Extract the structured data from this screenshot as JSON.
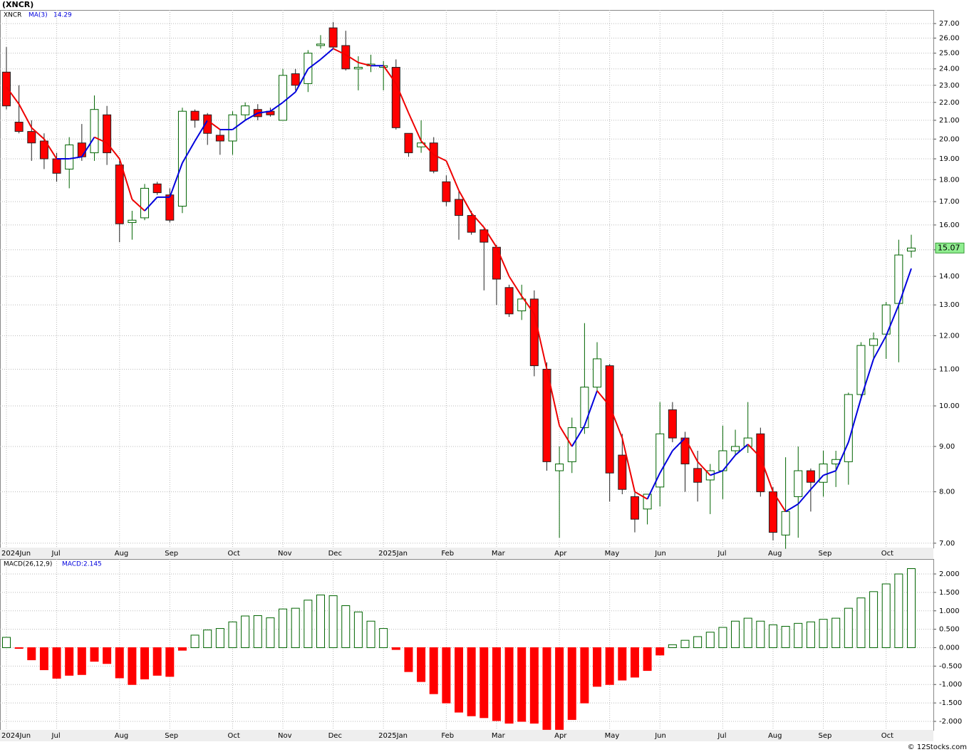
{
  "chart_data": [
    {
      "type": "candlestick",
      "title": "(XNCR)",
      "symbol": "XNCR",
      "categories": [
        "2024Jun",
        null,
        null,
        null,
        "Jul",
        null,
        null,
        null,
        null,
        "Aug",
        null,
        null,
        null,
        "Sep",
        null,
        null,
        null,
        null,
        "Oct",
        null,
        null,
        null,
        "Nov",
        null,
        null,
        null,
        "Dec",
        null,
        null,
        null,
        "2025Jan",
        null,
        null,
        null,
        null,
        "Feb",
        null,
        null,
        null,
        "Mar",
        null,
        null,
        null,
        null,
        "Apr",
        null,
        null,
        null,
        "May",
        null,
        null,
        null,
        "Jun",
        null,
        null,
        null,
        null,
        "Jul",
        null,
        null,
        null,
        "Aug",
        null,
        null,
        null,
        "Sep",
        null,
        null,
        null,
        null,
        "Oct",
        null,
        null
      ],
      "open": [
        23.8,
        20.9,
        20.4,
        19.9,
        19.0,
        18.5,
        19.8,
        19.3,
        21.3,
        18.7,
        16.1,
        16.3,
        17.8,
        17.3,
        16.8,
        21.5,
        21.3,
        20.2,
        19.9,
        21.3,
        21.6,
        21.5,
        21.0,
        23.7,
        23.1,
        25.5,
        26.7,
        25.5,
        24.0,
        24.2,
        24.1,
        24.1,
        20.3,
        19.6,
        19.8,
        17.9,
        17.1,
        16.4,
        15.8,
        15.1,
        13.6,
        12.8,
        13.2,
        11.0,
        8.45,
        8.65,
        9.45,
        10.5,
        11.1,
        8.8,
        7.9,
        7.65,
        8.1,
        9.9,
        9.2,
        8.5,
        8.25,
        8.45,
        8.9,
        9.0,
        9.3,
        8.0,
        7.15,
        7.9,
        8.45,
        8.2,
        8.6,
        8.65,
        10.3,
        11.7,
        12.05,
        13.05,
        14.95
      ],
      "high": [
        25.4,
        23.0,
        21.0,
        20.3,
        19.3,
        20.1,
        20.8,
        22.4,
        21.8,
        18.9,
        16.6,
        17.8,
        17.9,
        17.6,
        21.7,
        21.6,
        21.4,
        20.5,
        21.5,
        22.0,
        21.9,
        21.7,
        24.0,
        24.0,
        25.2,
        26.2,
        27.1,
        26.5,
        24.8,
        24.9,
        24.5,
        24.6,
        20.3,
        21.0,
        20.1,
        18.2,
        17.5,
        16.6,
        15.9,
        15.2,
        13.7,
        13.7,
        13.5,
        11.2,
        9.0,
        9.7,
        12.4,
        11.8,
        11.15,
        9.3,
        8.0,
        7.95,
        10.1,
        10.1,
        9.35,
        8.9,
        8.6,
        9.5,
        9.4,
        10.1,
        9.45,
        8.1,
        8.75,
        9.0,
        8.5,
        8.9,
        8.9,
        10.35,
        11.8,
        12.1,
        13.1,
        15.4,
        15.6
      ],
      "low": [
        21.6,
        20.3,
        18.9,
        18.5,
        17.9,
        17.6,
        18.9,
        18.9,
        18.7,
        15.3,
        15.4,
        16.2,
        17.3,
        16.1,
        16.5,
        20.6,
        19.7,
        19.2,
        19.2,
        21.0,
        21.0,
        21.2,
        21.0,
        22.7,
        22.6,
        25.3,
        25.3,
        23.9,
        22.7,
        23.8,
        22.7,
        20.5,
        19.1,
        19.3,
        18.3,
        16.8,
        15.4,
        15.6,
        13.5,
        13.0,
        12.6,
        12.5,
        10.8,
        8.45,
        7.1,
        8.4,
        9.3,
        10.4,
        7.8,
        7.95,
        7.2,
        7.35,
        7.7,
        9.1,
        8.0,
        7.8,
        7.55,
        7.85,
        8.8,
        8.85,
        7.9,
        7.05,
        6.9,
        7.1,
        7.6,
        7.9,
        8.1,
        8.15,
        10.2,
        11.3,
        11.3,
        11.2,
        14.7
      ],
      "close": [
        21.8,
        20.4,
        19.8,
        19.0,
        18.3,
        19.7,
        19.1,
        21.6,
        19.3,
        16.05,
        16.2,
        17.6,
        17.4,
        16.2,
        21.5,
        21.0,
        20.3,
        19.9,
        21.3,
        21.8,
        21.2,
        21.3,
        23.6,
        23.0,
        25.0,
        25.6,
        25.4,
        24.0,
        24.1,
        24.3,
        24.2,
        20.6,
        19.3,
        19.8,
        18.4,
        17.0,
        16.4,
        15.7,
        15.3,
        13.9,
        12.7,
        13.2,
        11.1,
        8.65,
        8.6,
        9.45,
        10.5,
        11.3,
        8.4,
        8.05,
        7.45,
        7.95,
        9.3,
        9.2,
        8.6,
        8.2,
        8.45,
        8.9,
        9.0,
        9.2,
        8.0,
        7.2,
        7.6,
        8.45,
        8.2,
        8.6,
        8.7,
        10.3,
        11.7,
        11.9,
        13.0,
        14.8,
        15.07
      ],
      "up_color": "#006400",
      "down_color": "#ff0000",
      "ma": {
        "name": "MA(3)",
        "up_color": "#0000dd",
        "down_color": "#ee0000",
        "values": [
          22.9,
          21.9,
          20.6,
          20.0,
          19.0,
          19.0,
          19.1,
          20.1,
          19.8,
          19.0,
          17.1,
          16.6,
          17.2,
          17.2,
          18.8,
          19.9,
          21.0,
          20.5,
          20.5,
          21.0,
          21.4,
          21.5,
          22.0,
          22.6,
          24.0,
          24.6,
          25.3,
          24.9,
          24.4,
          24.2,
          24.2,
          23.1,
          21.4,
          19.9,
          19.2,
          18.9,
          17.5,
          16.5,
          15.9,
          15.1,
          14.0,
          13.3,
          12.7,
          11.0,
          9.5,
          9.0,
          9.5,
          10.4,
          10.0,
          9.2,
          8.0,
          7.85,
          8.4,
          8.9,
          9.2,
          8.65,
          8.35,
          8.45,
          8.8,
          9.05,
          8.75,
          8.0,
          7.6,
          7.75,
          8.05,
          8.35,
          8.45,
          9.1,
          10.2,
          11.3,
          12.0,
          13.0,
          14.29
        ]
      },
      "ylim": [
        6.92,
        27.97
      ],
      "log_scale": true,
      "grid": true,
      "last_price_color": "#90ee90",
      "yticks": [
        {
          "value": 7,
          "label": "7.00"
        },
        {
          "value": 8,
          "label": "8.00"
        },
        {
          "value": 9,
          "label": "9.00"
        },
        {
          "value": 10,
          "label": "10.00"
        },
        {
          "value": 11,
          "label": "11.00"
        },
        {
          "value": 12,
          "label": "12.00"
        },
        {
          "value": 13,
          "label": "13.00"
        },
        {
          "value": 14,
          "label": "14.00"
        },
        {
          "value": 15,
          "label": "15.00"
        },
        {
          "value": 16,
          "label": "16.00"
        },
        {
          "value": 17,
          "label": "17.00"
        },
        {
          "value": 18,
          "label": "18.00"
        },
        {
          "value": 19,
          "label": "19.00"
        },
        {
          "value": 20,
          "label": "20.00"
        },
        {
          "value": 21,
          "label": "21.00"
        },
        {
          "value": 22,
          "label": "22.00"
        },
        {
          "value": 23,
          "label": "23.00"
        },
        {
          "value": 24,
          "label": "24.00"
        },
        {
          "value": 25,
          "label": "25.00"
        },
        {
          "value": 26,
          "label": "26.00"
        },
        {
          "value": 27,
          "label": "27.00"
        }
      ]
    },
    {
      "type": "histogram",
      "title": "MACD(26,12,9)",
      "label": "MACD:2.145",
      "values": [
        0.28,
        -0.02,
        -0.33,
        -0.6,
        -0.83,
        -0.75,
        -0.73,
        -0.37,
        -0.43,
        -0.82,
        -1.0,
        -0.85,
        -0.75,
        -0.78,
        -0.07,
        0.34,
        0.48,
        0.52,
        0.7,
        0.86,
        0.87,
        0.81,
        1.05,
        1.07,
        1.29,
        1.43,
        1.41,
        1.14,
        0.97,
        0.72,
        0.52,
        -0.05,
        -0.65,
        -0.92,
        -1.25,
        -1.5,
        -1.75,
        -1.85,
        -1.9,
        -1.98,
        -2.05,
        -2.0,
        -2.05,
        -2.22,
        -2.22,
        -1.95,
        -1.5,
        -1.05,
        -1.0,
        -0.88,
        -0.8,
        -0.62,
        -0.2,
        0.08,
        0.2,
        0.3,
        0.42,
        0.55,
        0.72,
        0.8,
        0.72,
        0.62,
        0.58,
        0.66,
        0.7,
        0.77,
        0.8,
        1.07,
        1.35,
        1.52,
        1.73,
        2.0,
        2.145
      ],
      "up_color": "#006400",
      "down_color": "#ff0000",
      "ylim": [
        -2.232,
        2.406
      ],
      "grid": true,
      "yticks": [
        {
          "value": -2,
          "label": "-2.000"
        },
        {
          "value": -1.5,
          "label": "-1.500"
        },
        {
          "value": -1,
          "label": "-1.000"
        },
        {
          "value": -0.5,
          "label": "-0.500"
        },
        {
          "value": 0,
          "label": "0.000"
        },
        {
          "value": 0.5,
          "label": "0.500"
        },
        {
          "value": 1,
          "label": "1.000"
        },
        {
          "value": 1.5,
          "label": "1.500"
        },
        {
          "value": 2,
          "label": "2.000"
        }
      ]
    }
  ],
  "footer": "© 12Stocks.com"
}
